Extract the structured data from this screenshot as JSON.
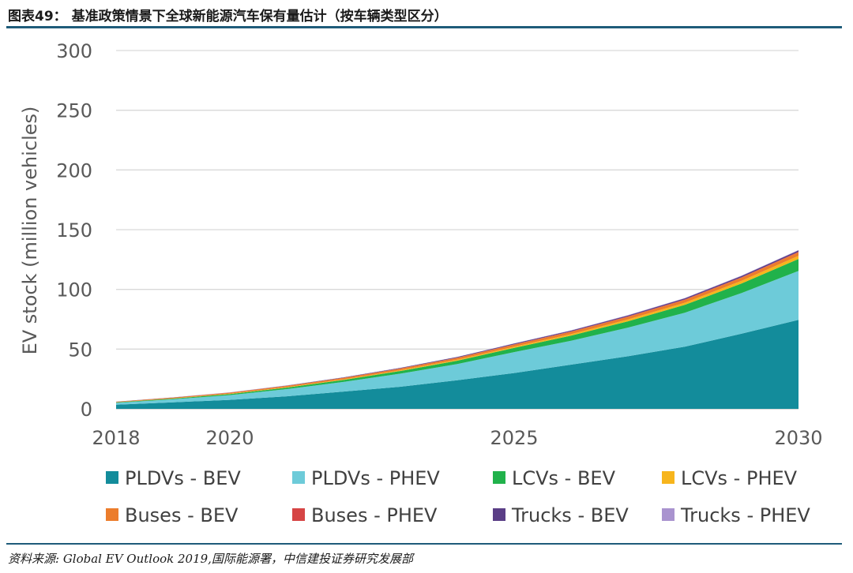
{
  "header": {
    "title": "图表49： 基准政策情景下全球新能源汽车保有量估计（按车辆类型区分）"
  },
  "footer": {
    "source": "资料来源: Global EV Outlook 2019,国际能源署，中信建投证券研究发展部"
  },
  "chart_data": {
    "type": "area",
    "stacked": true,
    "title": "",
    "xlabel": "",
    "ylabel": "EV stock (million vehicles)",
    "xlim": [
      2018,
      2030
    ],
    "ylim": [
      0,
      300
    ],
    "x_ticks": [
      2018,
      2020,
      2025,
      2030
    ],
    "y_ticks": [
      0,
      50,
      100,
      150,
      200,
      250,
      300
    ],
    "grid": true,
    "legend_position": "bottom",
    "x": [
      2018,
      2019,
      2020,
      2021,
      2022,
      2023,
      2024,
      2025,
      2026,
      2027,
      2028,
      2029,
      2030
    ],
    "series": [
      {
        "name": "PLDVs - BEV",
        "color": "#138c9b",
        "values": [
          3.5,
          5.5,
          7.5,
          10.5,
          14.5,
          18.5,
          24,
          30,
          37,
          44,
          52,
          63,
          74.5
        ]
      },
      {
        "name": "PLDVs - PHEV",
        "color": "#6dcbd9",
        "values": [
          1.5,
          2.5,
          4,
          6,
          8,
          11,
          13.5,
          17.5,
          20,
          24,
          28.5,
          34,
          41
        ]
      },
      {
        "name": "LCVs - BEV",
        "color": "#21b24b",
        "values": [
          0.4,
          0.6,
          0.9,
          1.3,
          1.7,
          2.2,
          2.8,
          3.5,
          4.3,
          5.3,
          6.5,
          8,
          10
        ]
      },
      {
        "name": "LCVs - PHEV",
        "color": "#f7b51c",
        "values": [
          0.1,
          0.2,
          0.3,
          0.4,
          0.5,
          0.6,
          0.8,
          1,
          1.2,
          1.5,
          1.8,
          2.2,
          2.6
        ]
      },
      {
        "name": "Buses - BEV",
        "color": "#ec7d2c",
        "values": [
          0.4,
          0.6,
          0.8,
          1,
          1.2,
          1.4,
          1.6,
          1.8,
          2,
          2.2,
          2.4,
          2.6,
          2.9
        ]
      },
      {
        "name": "Buses - PHEV",
        "color": "#d64545",
        "values": [
          0.05,
          0.07,
          0.1,
          0.12,
          0.15,
          0.18,
          0.2,
          0.25,
          0.3,
          0.35,
          0.4,
          0.45,
          0.5
        ]
      },
      {
        "name": "Trucks - BEV",
        "color": "#5a3e86",
        "values": [
          0.05,
          0.1,
          0.15,
          0.2,
          0.3,
          0.4,
          0.5,
          0.6,
          0.7,
          0.8,
          0.9,
          1,
          1.1
        ]
      },
      {
        "name": "Trucks - PHEV",
        "color": "#a993cf",
        "values": [
          0.02,
          0.04,
          0.06,
          0.08,
          0.1,
          0.12,
          0.15,
          0.18,
          0.22,
          0.26,
          0.3,
          0.35,
          0.4
        ]
      }
    ]
  }
}
